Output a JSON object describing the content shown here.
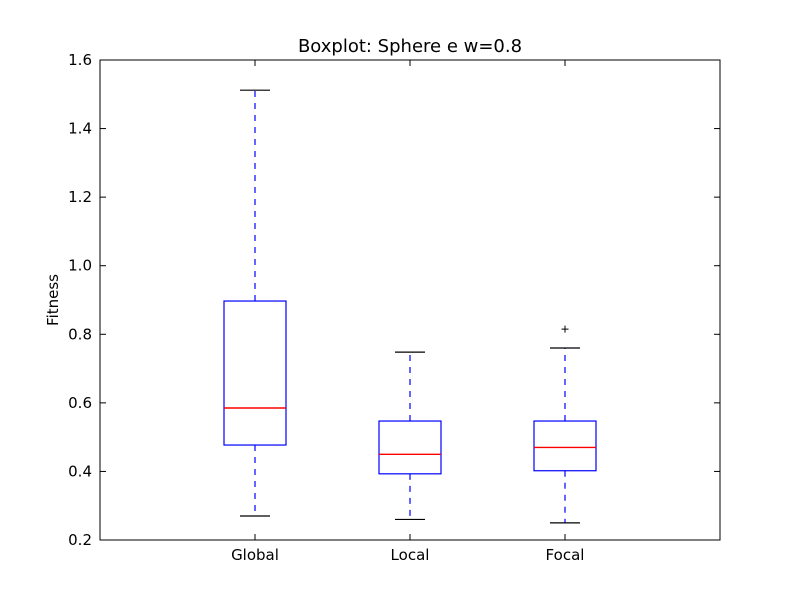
{
  "chart_data": {
    "type": "boxplot",
    "title": "Boxplot: Sphere e w=0.8",
    "xlabel": "",
    "ylabel": "Fitness",
    "ylim": [
      0.2,
      1.6
    ],
    "yticks": [
      "0.2",
      "0.4",
      "0.6",
      "0.8",
      "1.0",
      "1.2",
      "1.4",
      "1.6"
    ],
    "grid": false,
    "categories": [
      "Global",
      "Local",
      "Focal"
    ],
    "boxes": [
      {
        "category": "Global",
        "whisker_low": 0.27,
        "q1": 0.477,
        "median": 0.585,
        "q3": 0.897,
        "whisker_high": 1.512,
        "outliers": []
      },
      {
        "category": "Local",
        "whisker_low": 0.26,
        "q1": 0.393,
        "median": 0.45,
        "q3": 0.547,
        "whisker_high": 0.748,
        "outliers": []
      },
      {
        "category": "Focal",
        "whisker_low": 0.25,
        "q1": 0.402,
        "median": 0.47,
        "q3": 0.547,
        "whisker_high": 0.76,
        "outliers": [
          0.815
        ]
      }
    ],
    "colors": {
      "box": "#0000ff",
      "median": "#ff0000",
      "whisker": "#0000ff",
      "cap": "#000000",
      "outlier": "#000000",
      "frame": "#000000"
    }
  }
}
